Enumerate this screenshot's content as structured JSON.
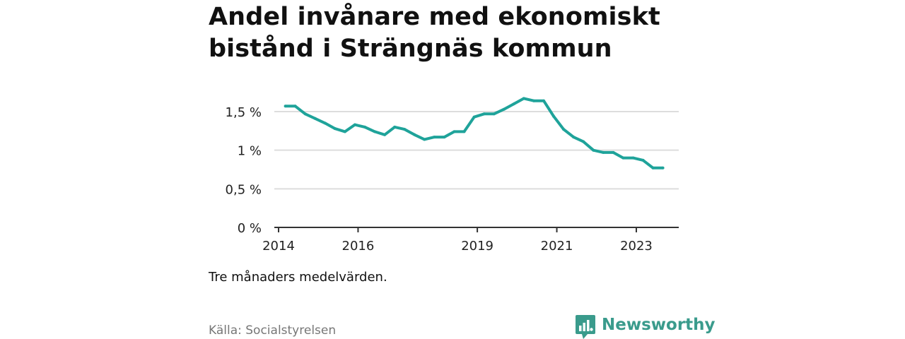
{
  "title": "Andel invånare med ekonomiskt bistånd i Strängnäs kommun",
  "note": "Tre månaders medelvärden.",
  "source": "Källa: Socialstyrelsen",
  "brand": {
    "name": "Newsworthy"
  },
  "colors": {
    "line": "#1fa39a",
    "grid": "#dddddd",
    "axis": "#333333",
    "brand": "#3a9b8c"
  },
  "chart_data": {
    "type": "line",
    "title": "Andel invånare med ekonomiskt bistånd i Strängnäs kommun",
    "xlabel": "",
    "ylabel": "",
    "ylim": [
      0,
      1.5
    ],
    "yticks": [
      0,
      0.5,
      1,
      1.5
    ],
    "ytick_labels": [
      "0 %",
      "0,5 %",
      "1 %",
      "1,5 %"
    ],
    "xticks": [
      2014,
      2016,
      2019,
      2021,
      2023
    ],
    "xtick_labels": [
      "2014",
      "2016",
      "2019",
      "2021",
      "2023"
    ],
    "grid": true,
    "legend": "none",
    "series": [
      {
        "color": "#1fa39a",
        "x": [
          2014.17,
          2014.42,
          2014.67,
          2014.92,
          2015.17,
          2015.42,
          2015.67,
          2015.92,
          2016.17,
          2016.42,
          2016.67,
          2016.92,
          2017.17,
          2017.42,
          2017.67,
          2017.92,
          2018.17,
          2018.42,
          2018.67,
          2018.92,
          2019.17,
          2019.42,
          2019.67,
          2019.92,
          2020.17,
          2020.42,
          2020.67,
          2020.92,
          2021.17,
          2021.42,
          2021.67,
          2021.92,
          2022.17,
          2022.42,
          2022.67,
          2022.92,
          2023.17,
          2023.42,
          2023.67
        ],
        "y": [
          1.57,
          1.57,
          1.47,
          1.41,
          1.35,
          1.28,
          1.24,
          1.33,
          1.3,
          1.24,
          1.2,
          1.3,
          1.27,
          1.2,
          1.14,
          1.17,
          1.17,
          1.24,
          1.24,
          1.43,
          1.47,
          1.47,
          1.53,
          1.6,
          1.67,
          1.64,
          1.64,
          1.44,
          1.27,
          1.17,
          1.11,
          1.0,
          0.97,
          0.97,
          0.9,
          0.9,
          0.87,
          0.77,
          0.77
        ]
      }
    ]
  }
}
